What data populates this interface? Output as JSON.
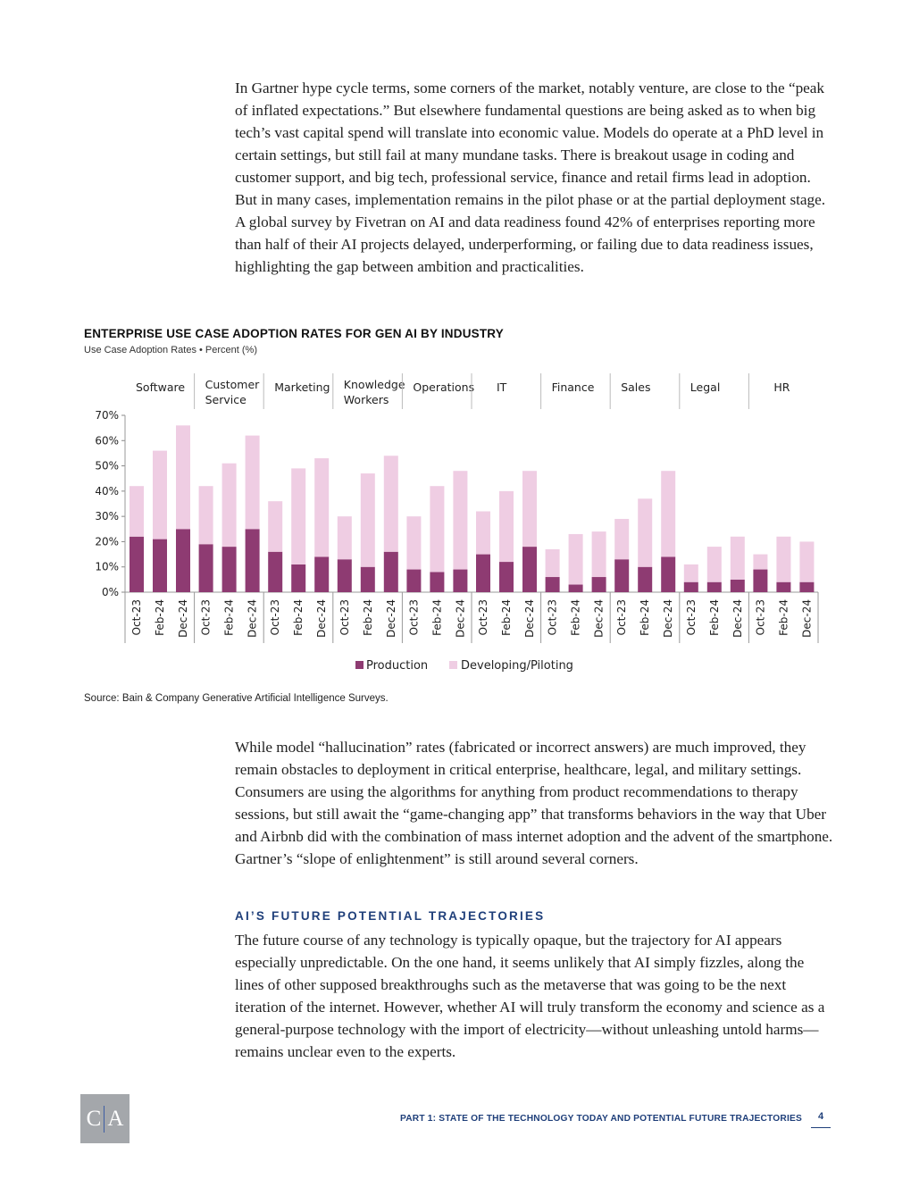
{
  "paragraphs": {
    "p1": "In Gartner hype cycle terms, some corners of the market, notably venture, are close to the “peak of inflated expectations.” But elsewhere fundamental questions are being asked as to when big tech’s vast capital spend will translate into economic value. Models do operate at a PhD level in certain settings, but still fail at many mundane tasks. There is breakout usage in coding and customer support, and big tech, professional service, finance and retail firms lead in adoption. But in many cases, implementation remains in the pilot phase or at the partial deployment stage. A global survey by Fivetran on AI and data readiness found 42% of enterprises reporting more than half of their AI projects delayed, underperforming, or failing due to data readiness issues, highlighting the gap between ambition and practicalities.",
    "p2": "While model “hallucination” rates (fabricated or incorrect answers) are much improved, they remain obstacles to deployment in critical enterprise, healthcare, legal, and military settings. Consumers are using the algorithms for anything from product recommendations to therapy sessions, but still await the “game-changing app” that transforms behaviors in the way that Uber and Airbnb did with the combination of mass internet adoption and the advent of the smartphone. Gartner’s “slope of enlight­enment” is still around several corners.",
    "p3": "The future course of any technology is typically opaque, but the trajectory for AI appears especially unpredictable. On the one hand, it seems unlikely that AI simply fizzles, along the lines of other supposed breakthroughs such as the metaverse that was going to be the next iteration of the internet. However, whether AI will truly transform the economy and science as a general-purpose technology with the import of elec­tricity—without unleashing untold harms—remains unclear even to the experts."
  },
  "section_heading": "AI’s Future Potential Trajectories",
  "chart_title": "ENTERPRISE USE CASE ADOPTION RATES FOR GEN AI BY INDUSTRY",
  "chart_subtitle": "Use Case Adoption Rates • Percent (%)",
  "source": "Source: Bain & Company Generative Artificial Intelligence Surveys.",
  "footer": {
    "logo_left": "C",
    "logo_right": "A",
    "running_title": "PART 1: STATE OF THE TECHNOLOGY TODAY AND POTENTIAL FUTURE TRAJECTORIES",
    "page_number": "4"
  },
  "chart_data": {
    "type": "bar",
    "stacked": true,
    "ylim": [
      0,
      70
    ],
    "yticks": [
      "0%",
      "10%",
      "20%",
      "30%",
      "40%",
      "50%",
      "60%",
      "70%"
    ],
    "periods": [
      "Oct-23",
      "Feb-24",
      "Dec-24"
    ],
    "groups": [
      {
        "label": [
          "Software"
        ],
        "production": [
          22,
          21,
          25
        ],
        "developing": [
          20,
          35,
          41
        ]
      },
      {
        "label": [
          "Customer",
          "Service"
        ],
        "production": [
          19,
          18,
          25
        ],
        "developing": [
          23,
          33,
          37
        ]
      },
      {
        "label": [
          "Marketing"
        ],
        "production": [
          16,
          11,
          14
        ],
        "developing": [
          20,
          38,
          39
        ]
      },
      {
        "label": [
          "Knowledge",
          "Workers"
        ],
        "production": [
          13,
          10,
          16
        ],
        "developing": [
          17,
          37,
          38
        ]
      },
      {
        "label": [
          "Operations"
        ],
        "production": [
          9,
          8,
          9
        ],
        "developing": [
          21,
          34,
          39
        ]
      },
      {
        "label": [
          "IT"
        ],
        "production": [
          15,
          12,
          18
        ],
        "developing": [
          17,
          28,
          30
        ]
      },
      {
        "label": [
          "Finance"
        ],
        "production": [
          6,
          3,
          6
        ],
        "developing": [
          11,
          20,
          18
        ]
      },
      {
        "label": [
          "Sales"
        ],
        "production": [
          13,
          10,
          14
        ],
        "developing": [
          16,
          27,
          34
        ]
      },
      {
        "label": [
          "Legal"
        ],
        "production": [
          4,
          4,
          5
        ],
        "developing": [
          7,
          14,
          17
        ]
      },
      {
        "label": [
          "HR"
        ],
        "production": [
          9,
          4,
          4
        ],
        "developing": [
          6,
          18,
          16
        ]
      }
    ],
    "series": [
      {
        "name": "Production",
        "color": "#8e3b72"
      },
      {
        "name": "Developing/Piloting",
        "color": "#efcde3"
      }
    ],
    "legend": "bottom-center",
    "grid": false
  }
}
